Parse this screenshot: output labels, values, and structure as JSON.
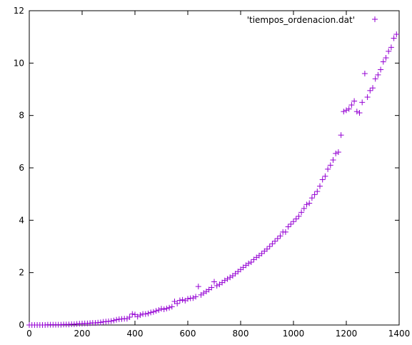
{
  "chart_data": {
    "type": "scatter",
    "legend": {
      "label": "'tiempos_ordenacion.dat'",
      "position": "top-right"
    },
    "series_color": "#9400d3",
    "xlim": [
      0,
      1400
    ],
    "ylim": [
      0,
      12
    ],
    "x_ticks": [
      0,
      200,
      400,
      600,
      800,
      1000,
      1200,
      1400
    ],
    "y_ticks": [
      0,
      2,
      4,
      6,
      8,
      10,
      12
    ],
    "grid": false,
    "x": [
      0,
      10,
      20,
      30,
      40,
      50,
      60,
      70,
      80,
      90,
      100,
      110,
      120,
      130,
      140,
      150,
      160,
      170,
      180,
      190,
      200,
      210,
      220,
      230,
      240,
      250,
      260,
      270,
      280,
      290,
      300,
      310,
      320,
      330,
      340,
      350,
      360,
      370,
      380,
      390,
      400,
      410,
      420,
      430,
      440,
      450,
      460,
      470,
      480,
      490,
      500,
      510,
      520,
      530,
      540,
      550,
      560,
      570,
      580,
      590,
      600,
      610,
      620,
      630,
      640,
      650,
      660,
      670,
      680,
      690,
      700,
      710,
      720,
      730,
      740,
      750,
      760,
      770,
      780,
      790,
      800,
      810,
      820,
      830,
      840,
      850,
      860,
      870,
      880,
      890,
      900,
      910,
      920,
      930,
      940,
      950,
      960,
      970,
      980,
      990,
      1000,
      1010,
      1020,
      1030,
      1040,
      1050,
      1060,
      1070,
      1080,
      1090,
      1100,
      1110,
      1120,
      1130,
      1140,
      1150,
      1160,
      1170,
      1180,
      1190,
      1200,
      1210,
      1220,
      1230,
      1240,
      1250,
      1260,
      1270,
      1280,
      1290,
      1300,
      1310,
      1320,
      1330,
      1340,
      1350,
      1360,
      1370,
      1380,
      1390
    ],
    "y": [
      0.0,
      0.0,
      0.0,
      0.0,
      0.0,
      0.0,
      0.0,
      0.01,
      0.01,
      0.01,
      0.01,
      0.01,
      0.01,
      0.02,
      0.02,
      0.02,
      0.03,
      0.03,
      0.04,
      0.05,
      0.05,
      0.06,
      0.06,
      0.07,
      0.08,
      0.08,
      0.09,
      0.1,
      0.12,
      0.13,
      0.14,
      0.15,
      0.17,
      0.2,
      0.22,
      0.23,
      0.24,
      0.24,
      0.3,
      0.42,
      0.4,
      0.32,
      0.38,
      0.42,
      0.42,
      0.44,
      0.48,
      0.5,
      0.54,
      0.57,
      0.62,
      0.6,
      0.63,
      0.66,
      0.7,
      0.9,
      0.82,
      0.94,
      0.96,
      0.93,
      1.0,
      1.02,
      1.03,
      1.08,
      1.47,
      1.15,
      1.22,
      1.28,
      1.35,
      1.43,
      1.65,
      1.5,
      1.55,
      1.62,
      1.7,
      1.76,
      1.82,
      1.88,
      1.96,
      2.04,
      2.12,
      2.2,
      2.28,
      2.35,
      2.4,
      2.5,
      2.58,
      2.65,
      2.73,
      2.82,
      2.9,
      3.0,
      3.1,
      3.2,
      3.3,
      3.4,
      3.55,
      3.55,
      3.75,
      3.85,
      3.95,
      4.05,
      4.15,
      4.3,
      4.45,
      4.6,
      4.65,
      4.85,
      4.98,
      5.1,
      5.3,
      5.55,
      5.68,
      5.95,
      6.1,
      6.3,
      6.55,
      6.6,
      7.25,
      8.15,
      8.2,
      8.25,
      8.4,
      8.55,
      8.15,
      8.1,
      8.5,
      9.6,
      8.7,
      8.95,
      9.05,
      9.4,
      9.55,
      9.75,
      10.05,
      10.2,
      10.45,
      10.6,
      10.95,
      11.1
    ]
  }
}
